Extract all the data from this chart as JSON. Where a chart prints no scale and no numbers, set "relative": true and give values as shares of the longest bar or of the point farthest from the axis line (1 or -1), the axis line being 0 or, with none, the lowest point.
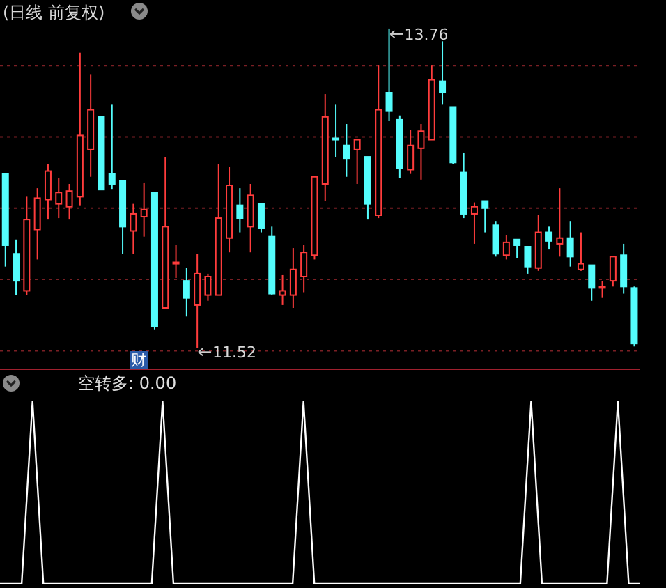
{
  "chart_data": [
    {
      "type": "candlestick",
      "title": "(日线 前复权)",
      "categories": [
        null,
        null,
        null,
        null,
        null,
        null,
        null,
        null,
        null,
        null,
        null,
        null,
        null,
        null,
        null,
        null,
        null,
        null,
        null,
        null,
        null,
        null,
        null,
        null,
        null,
        null,
        null,
        null,
        null,
        null,
        null,
        null,
        null,
        null,
        null,
        null,
        null,
        null,
        null,
        null,
        null,
        null,
        null,
        null,
        null,
        null,
        null,
        null,
        null,
        null,
        null,
        null,
        null,
        null,
        null,
        null,
        null,
        null,
        null,
        null
      ],
      "ohlc": [
        [
          12.74,
          12.74,
          12.09,
          12.24
        ],
        [
          12.18,
          12.28,
          11.89,
          11.99
        ],
        [
          11.92,
          12.58,
          11.89,
          12.42
        ],
        [
          12.35,
          12.64,
          12.14,
          12.57
        ],
        [
          12.56,
          12.81,
          12.42,
          12.76
        ],
        [
          12.53,
          12.71,
          12.43,
          12.61
        ],
        [
          12.51,
          12.67,
          12.42,
          12.62
        ],
        [
          12.58,
          13.59,
          12.52,
          13.01
        ],
        [
          12.91,
          13.44,
          12.72,
          13.19
        ],
        [
          13.14,
          13.14,
          12.63,
          12.63
        ],
        [
          12.74,
          13.23,
          12.63,
          12.67
        ],
        [
          12.69,
          12.69,
          12.18,
          12.37
        ],
        [
          12.34,
          12.53,
          12.18,
          12.46
        ],
        [
          12.44,
          12.68,
          12.3,
          12.49
        ],
        [
          12.61,
          12.61,
          11.65,
          11.67
        ],
        [
          11.8,
          12.86,
          11.8,
          12.37
        ],
        [
          12.11,
          12.24,
          12.01,
          12.12
        ],
        [
          11.99,
          12.08,
          11.74,
          11.87
        ],
        [
          11.82,
          12.18,
          11.52,
          12.04
        ],
        [
          11.89,
          12.04,
          11.85,
          12.02
        ],
        [
          11.89,
          12.81,
          11.89,
          12.43
        ],
        [
          12.29,
          12.79,
          12.19,
          12.66
        ],
        [
          12.52,
          12.64,
          12.33,
          12.43
        ],
        [
          12.37,
          12.67,
          12.19,
          12.59
        ],
        [
          12.53,
          12.53,
          12.33,
          12.36
        ],
        [
          12.3,
          12.37,
          11.89,
          11.9
        ],
        [
          11.89,
          12.03,
          11.82,
          11.92
        ],
        [
          11.89,
          12.22,
          11.8,
          12.07
        ],
        [
          12.02,
          12.24,
          11.91,
          12.19
        ],
        [
          12.17,
          12.72,
          12.14,
          12.72
        ],
        [
          12.67,
          13.3,
          12.55,
          13.14
        ],
        [
          12.99,
          13.23,
          12.86,
          12.98
        ],
        [
          12.94,
          13.09,
          12.72,
          12.85
        ],
        [
          12.91,
          12.98,
          12.67,
          12.98
        ],
        [
          12.86,
          12.86,
          12.42,
          12.53
        ],
        [
          12.45,
          13.5,
          12.43,
          13.19
        ],
        [
          13.31,
          13.76,
          13.11,
          13.18
        ],
        [
          13.12,
          13.15,
          12.71,
          12.78
        ],
        [
          12.77,
          13.05,
          12.74,
          12.94
        ],
        [
          12.92,
          13.09,
          12.7,
          13.04
        ],
        [
          12.98,
          13.5,
          12.98,
          13.4
        ],
        [
          13.39,
          13.67,
          13.23,
          13.31
        ],
        [
          13.21,
          13.21,
          12.81,
          12.82
        ],
        [
          12.75,
          12.89,
          12.43,
          12.46
        ],
        [
          12.46,
          12.54,
          12.25,
          12.51
        ],
        [
          12.55,
          12.55,
          12.33,
          12.5
        ],
        [
          12.38,
          12.41,
          12.16,
          12.18
        ],
        [
          12.17,
          12.31,
          12.14,
          12.26
        ],
        [
          12.28,
          12.28,
          12.15,
          12.24
        ],
        [
          12.23,
          12.23,
          12.04,
          12.09
        ],
        [
          12.08,
          12.45,
          12.06,
          12.33
        ],
        [
          12.33,
          12.37,
          12.21,
          12.27
        ],
        [
          12.25,
          12.64,
          12.16,
          12.29
        ],
        [
          12.29,
          12.41,
          12.09,
          12.16
        ],
        [
          12.07,
          12.33,
          12.06,
          12.11
        ],
        [
          12.1,
          12.1,
          11.85,
          11.94
        ],
        [
          11.94,
          11.99,
          11.87,
          11.95
        ],
        [
          11.99,
          12.16,
          11.95,
          12.16
        ],
        [
          12.17,
          12.25,
          11.9,
          11.95
        ],
        [
          11.94,
          11.95,
          11.53,
          11.55
        ]
      ],
      "colors": [
        "#54fcfc",
        "#54fcfc",
        "#ff3c3c",
        "#ff3c3c",
        "#ff3c3c",
        "#ff3c3c",
        "#ff3c3c",
        "#ff3c3c",
        "#ff3c3c",
        "#54fcfc",
        "#54fcfc",
        "#54fcfc",
        "#ff3c3c",
        "#ff3c3c",
        "#54fcfc",
        "#ff3c3c",
        "#ff3c3c",
        "#54fcfc",
        "#ff3c3c",
        "#ff3c3c",
        "#ff3c3c",
        "#ff3c3c",
        "#54fcfc",
        "#ff3c3c",
        "#54fcfc",
        "#54fcfc",
        "#ff3c3c",
        "#ff3c3c",
        "#ff3c3c",
        "#ff3c3c",
        "#ff3c3c",
        "#54fcfc",
        "#54fcfc",
        "#ff3c3c",
        "#54fcfc",
        "#ff3c3c",
        "#54fcfc",
        "#54fcfc",
        "#ff3c3c",
        "#ff3c3c",
        "#ff3c3c",
        "#54fcfc",
        "#54fcfc",
        "#54fcfc",
        "#ff3c3c",
        "#54fcfc",
        "#54fcfc",
        "#ff3c3c",
        "#54fcfc",
        "#54fcfc",
        "#ff3c3c",
        "#54fcfc",
        "#ff3c3c",
        "#54fcfc",
        "#ff3c3c",
        "#54fcfc",
        "#ff3c3c",
        "#ff3c3c",
        "#54fcfc",
        "#54fcfc"
      ],
      "ylim": [
        11.37,
        13.96
      ],
      "yticks": [
        {
          "value": 11.5,
          "label": null
        },
        {
          "value": 12,
          "label": null
        },
        {
          "value": 12.5,
          "label": null
        },
        {
          "value": 13,
          "label": null
        },
        {
          "value": 13.5,
          "label": null
        }
      ],
      "grid": "y",
      "tick_labels": false,
      "annotations": [
        "13.76",
        "11.52",
        "财"
      ]
    },
    {
      "type": "line",
      "title": "空转多: 0.00",
      "relative": true,
      "tick_labels": false,
      "marker": "none",
      "categories": [
        null,
        null,
        null,
        null,
        null,
        null,
        null,
        null,
        null,
        null,
        null,
        null,
        null,
        null,
        null,
        null,
        null,
        null,
        null,
        null,
        null,
        null,
        null,
        null,
        null,
        null,
        null,
        null,
        null,
        null,
        null,
        null,
        null,
        null,
        null,
        null,
        null,
        null,
        null,
        null,
        null,
        null,
        null,
        null,
        null,
        null,
        null,
        null,
        null,
        null,
        null,
        null,
        null,
        null,
        null,
        null,
        null,
        null,
        null,
        null
      ],
      "series": [
        {
          "color": "#ffffff",
          "values": [
            0,
            0,
            0,
            1,
            0,
            0,
            0,
            0,
            0,
            0,
            0,
            0,
            0,
            0,
            0,
            1,
            0,
            0,
            0,
            0,
            0,
            0,
            0,
            0,
            0,
            0,
            0,
            0,
            1,
            0,
            0,
            0,
            0,
            0,
            0,
            0,
            0,
            0,
            0,
            0,
            0,
            0,
            0,
            0,
            0,
            0,
            0,
            0,
            0,
            1,
            0,
            0,
            0,
            0,
            0,
            0,
            0,
            1,
            0,
            0
          ]
        }
      ]
    }
  ]
}
